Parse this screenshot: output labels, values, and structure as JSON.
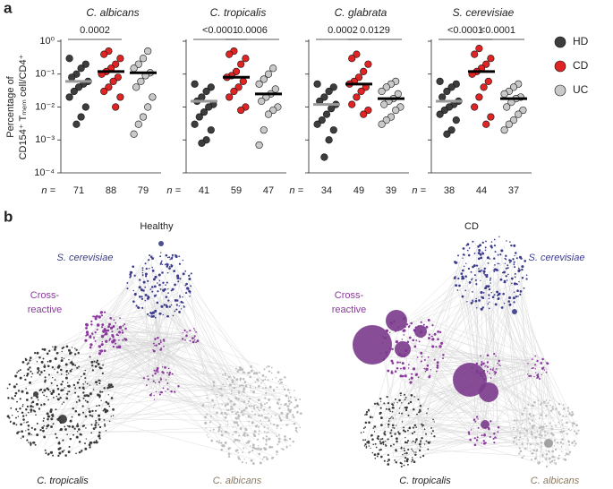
{
  "panel_labels": [
    "a",
    "b"
  ],
  "chart_data": {
    "type": "strip",
    "ylabel": [
      "Percentage of",
      "CD154⁺ Tₘₑₘ cell/CD4⁺"
    ],
    "yscale": "log",
    "ylim": [
      0.0001,
      1
    ],
    "yticks": [
      {
        "value": 0.0001,
        "label": "10⁻⁴"
      },
      {
        "value": 0.001,
        "label": "10⁻³"
      },
      {
        "value": 0.01,
        "label": "10⁻²"
      },
      {
        "value": 0.1,
        "label": "10⁻¹"
      },
      {
        "value": 1,
        "label": "10⁰"
      }
    ],
    "categories": [
      "HD",
      "CD",
      "UC"
    ],
    "colors": [
      "#3d3d3d",
      "#e02424",
      "#c9c9c9"
    ],
    "median_colors": [
      "#9a9a9a",
      "#000000",
      "#000000"
    ],
    "legend": "right",
    "n_prefix": "n =",
    "panels": [
      {
        "title": "C. albicans",
        "comparisons": [
          "0.0002",
          null
        ],
        "n": [
          71,
          88,
          79
        ],
        "medians": [
          0.06,
          0.12,
          0.11
        ],
        "values": [
          [
            0.3,
            0.2,
            0.15,
            0.1,
            0.08,
            0.06,
            0.05,
            0.04,
            0.03,
            0.02,
            0.01,
            0.005,
            0.003
          ],
          [
            0.5,
            0.4,
            0.3,
            0.2,
            0.15,
            0.12,
            0.1,
            0.08,
            0.06,
            0.04,
            0.03,
            0.02,
            0.01
          ],
          [
            0.5,
            0.3,
            0.2,
            0.15,
            0.11,
            0.09,
            0.06,
            0.04,
            0.02,
            0.01,
            0.005,
            0.003,
            0.0015
          ]
        ]
      },
      {
        "title": "C. tropicalis",
        "comparisons": [
          "<0.0001",
          "0.0006"
        ],
        "n": [
          41,
          59,
          47
        ],
        "medians": [
          0.015,
          0.08,
          0.025
        ],
        "values": [
          [
            0.05,
            0.04,
            0.03,
            0.02,
            0.015,
            0.012,
            0.01,
            0.007,
            0.005,
            0.003,
            0.002,
            0.001,
            0.0008
          ],
          [
            0.5,
            0.4,
            0.3,
            0.2,
            0.12,
            0.09,
            0.08,
            0.06,
            0.04,
            0.03,
            0.02,
            0.01,
            0.008
          ],
          [
            0.15,
            0.1,
            0.07,
            0.05,
            0.035,
            0.025,
            0.02,
            0.015,
            0.01,
            0.008,
            0.006,
            0.002,
            0.0007
          ]
        ]
      },
      {
        "title": "C. glabrata",
        "comparisons": [
          "0.0002",
          "0.0129"
        ],
        "n": [
          34,
          49,
          39
        ],
        "medians": [
          0.012,
          0.05,
          0.018
        ],
        "values": [
          [
            0.05,
            0.04,
            0.03,
            0.02,
            0.015,
            0.012,
            0.009,
            0.006,
            0.004,
            0.003,
            0.002,
            0.001,
            0.0003
          ],
          [
            0.4,
            0.3,
            0.2,
            0.12,
            0.08,
            0.06,
            0.05,
            0.04,
            0.03,
            0.02,
            0.012,
            0.008,
            0.006
          ],
          [
            0.06,
            0.05,
            0.04,
            0.03,
            0.025,
            0.018,
            0.015,
            0.012,
            0.01,
            0.008,
            0.005,
            0.004,
            0.003
          ]
        ]
      },
      {
        "title": "S. cerevisiae",
        "comparisons": [
          "<0.0001",
          "<0.0001"
        ],
        "n": [
          38,
          44,
          37
        ],
        "medians": [
          0.015,
          0.12,
          0.018
        ],
        "values": [
          [
            0.06,
            0.05,
            0.04,
            0.03,
            0.02,
            0.015,
            0.012,
            0.01,
            0.008,
            0.006,
            0.004,
            0.002,
            0.0015
          ],
          [
            0.6,
            0.4,
            0.3,
            0.2,
            0.15,
            0.12,
            0.1,
            0.06,
            0.04,
            0.02,
            0.01,
            0.005,
            0.003
          ],
          [
            0.05,
            0.04,
            0.03,
            0.025,
            0.02,
            0.018,
            0.014,
            0.01,
            0.008,
            0.006,
            0.004,
            0.003,
            0.002
          ]
        ]
      }
    ]
  },
  "networks": [
    {
      "title": "Healthy",
      "s_cerevisiae": "S. cerevisiae",
      "cross_reactive": [
        "Cross-",
        "reactive"
      ],
      "c_tropicalis": "C. tropicalis",
      "c_albicans": "C. albicans"
    },
    {
      "title": "CD",
      "s_cerevisiae": "S. cerevisiae",
      "cross_reactive": [
        "Cross-",
        "reactive"
      ],
      "c_tropicalis": "C. tropicalis",
      "c_albicans": "C. albicans"
    }
  ]
}
